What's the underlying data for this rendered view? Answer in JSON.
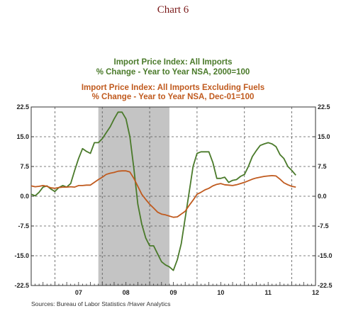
{
  "chart_data": {
    "type": "line",
    "title": "Chart 6",
    "ylim": [
      -22.5,
      22.5
    ],
    "yticks": [
      "22.5",
      "15.0",
      "7.5",
      "0.0",
      "-7.5",
      "-15.0",
      "-22.5"
    ],
    "ytick_values": [
      22.5,
      15,
      7.5,
      0,
      -7.5,
      -15,
      -22.5
    ],
    "xticks": [
      "07",
      "08",
      "09",
      "10",
      "11",
      "12"
    ],
    "x_start": "2006-07",
    "x_end": "2012-07",
    "grid": true,
    "shaded_region": {
      "start": "2007-12",
      "end": "2009-06"
    },
    "legend_placement": "top",
    "series": [
      {
        "name": "Import Price Index: All Imports",
        "subtitle": "% Change - Year to Year    NSA, 2000=100",
        "color": "#4a7a2a",
        "points": [
          [
            "2006-07",
            0.5
          ],
          [
            "2006-08",
            0.1
          ],
          [
            "2006-09",
            1.0
          ],
          [
            "2006-10",
            2.3
          ],
          [
            "2006-11",
            2.6
          ],
          [
            "2006-12",
            1.8
          ],
          [
            "2007-01",
            1.2
          ],
          [
            "2007-02",
            2.2
          ],
          [
            "2007-03",
            2.7
          ],
          [
            "2007-04",
            2.3
          ],
          [
            "2007-05",
            3.2
          ],
          [
            "2007-06",
            6.5
          ],
          [
            "2007-07",
            9.5
          ],
          [
            "2007-08",
            12.0
          ],
          [
            "2007-09",
            11.3
          ],
          [
            "2007-10",
            10.8
          ],
          [
            "2007-11",
            13.5
          ],
          [
            "2007-12",
            13.5
          ],
          [
            "2008-01",
            14.5
          ],
          [
            "2008-02",
            16.0
          ],
          [
            "2008-03",
            17.5
          ],
          [
            "2008-04",
            19.5
          ],
          [
            "2008-05",
            21.2
          ],
          [
            "2008-06",
            21.2
          ],
          [
            "2008-07",
            19.5
          ],
          [
            "2008-08",
            15.0
          ],
          [
            "2008-09",
            7.0
          ],
          [
            "2008-10",
            -2.0
          ],
          [
            "2008-11",
            -7.0
          ],
          [
            "2008-12",
            -10.5
          ],
          [
            "2009-01",
            -12.5
          ],
          [
            "2009-02",
            -12.5
          ],
          [
            "2009-03",
            -14.5
          ],
          [
            "2009-04",
            -16.5
          ],
          [
            "2009-05",
            -17.3
          ],
          [
            "2009-06",
            -17.8
          ],
          [
            "2009-07",
            -18.7
          ],
          [
            "2009-08",
            -16.0
          ],
          [
            "2009-09",
            -12.0
          ],
          [
            "2009-10",
            -5.5
          ],
          [
            "2009-11",
            1.0
          ],
          [
            "2009-12",
            7.5
          ],
          [
            "2010-01",
            10.8
          ],
          [
            "2010-02",
            11.2
          ],
          [
            "2010-03",
            11.2
          ],
          [
            "2010-04",
            11.2
          ],
          [
            "2010-05",
            8.5
          ],
          [
            "2010-06",
            4.5
          ],
          [
            "2010-07",
            4.5
          ],
          [
            "2010-08",
            4.8
          ],
          [
            "2010-09",
            3.5
          ],
          [
            "2010-10",
            4.0
          ],
          [
            "2010-11",
            4.2
          ],
          [
            "2010-12",
            5.0
          ],
          [
            "2011-01",
            5.5
          ],
          [
            "2011-02",
            7.5
          ],
          [
            "2011-03",
            10.0
          ],
          [
            "2011-04",
            11.5
          ],
          [
            "2011-05",
            12.8
          ],
          [
            "2011-06",
            13.2
          ],
          [
            "2011-07",
            13.5
          ],
          [
            "2011-08",
            13.2
          ],
          [
            "2011-09",
            12.5
          ],
          [
            "2011-10",
            10.5
          ],
          [
            "2011-11",
            9.5
          ],
          [
            "2011-12",
            7.5
          ],
          [
            "2012-01",
            6.5
          ],
          [
            "2012-02",
            5.3
          ]
        ]
      },
      {
        "name": "Import Price Index: All Imports Excluding Fuels",
        "subtitle": "% Change - Year to Year    NSA, Dec-01=100",
        "color": "#c05a1e",
        "points": [
          [
            "2006-07",
            2.6
          ],
          [
            "2006-08",
            2.4
          ],
          [
            "2006-09",
            2.5
          ],
          [
            "2006-10",
            2.7
          ],
          [
            "2006-11",
            2.5
          ],
          [
            "2006-12",
            2.1
          ],
          [
            "2007-01",
            2.0
          ],
          [
            "2007-02",
            2.2
          ],
          [
            "2007-03",
            2.3
          ],
          [
            "2007-04",
            2.3
          ],
          [
            "2007-05",
            2.4
          ],
          [
            "2007-06",
            2.3
          ],
          [
            "2007-07",
            2.7
          ],
          [
            "2007-08",
            2.7
          ],
          [
            "2007-09",
            2.8
          ],
          [
            "2007-10",
            2.8
          ],
          [
            "2007-11",
            3.5
          ],
          [
            "2007-12",
            4.2
          ],
          [
            "2008-01",
            4.8
          ],
          [
            "2008-02",
            5.5
          ],
          [
            "2008-03",
            5.8
          ],
          [
            "2008-04",
            6.0
          ],
          [
            "2008-05",
            6.3
          ],
          [
            "2008-06",
            6.4
          ],
          [
            "2008-07",
            6.4
          ],
          [
            "2008-08",
            6.1
          ],
          [
            "2008-09",
            4.5
          ],
          [
            "2008-10",
            2.5
          ],
          [
            "2008-11",
            0.5
          ],
          [
            "2008-12",
            -0.8
          ],
          [
            "2009-01",
            -2.0
          ],
          [
            "2009-02",
            -3.0
          ],
          [
            "2009-03",
            -4.0
          ],
          [
            "2009-04",
            -4.5
          ],
          [
            "2009-05",
            -4.7
          ],
          [
            "2009-06",
            -5.0
          ],
          [
            "2009-07",
            -5.3
          ],
          [
            "2009-08",
            -5.2
          ],
          [
            "2009-09",
            -4.5
          ],
          [
            "2009-10",
            -3.8
          ],
          [
            "2009-11",
            -2.3
          ],
          [
            "2009-12",
            -1.0
          ],
          [
            "2010-01",
            0.5
          ],
          [
            "2010-02",
            1.0
          ],
          [
            "2010-03",
            1.6
          ],
          [
            "2010-04",
            2.0
          ],
          [
            "2010-05",
            2.6
          ],
          [
            "2010-06",
            3.0
          ],
          [
            "2010-07",
            3.2
          ],
          [
            "2010-08",
            2.9
          ],
          [
            "2010-09",
            2.8
          ],
          [
            "2010-10",
            2.7
          ],
          [
            "2010-11",
            2.9
          ],
          [
            "2010-12",
            3.2
          ],
          [
            "2011-01",
            3.5
          ],
          [
            "2011-02",
            3.9
          ],
          [
            "2011-03",
            4.3
          ],
          [
            "2011-04",
            4.6
          ],
          [
            "2011-05",
            4.8
          ],
          [
            "2011-06",
            5.0
          ],
          [
            "2011-07",
            5.1
          ],
          [
            "2011-08",
            5.2
          ],
          [
            "2011-09",
            5.1
          ],
          [
            "2011-10",
            4.3
          ],
          [
            "2011-11",
            3.4
          ],
          [
            "2011-12",
            2.9
          ],
          [
            "2012-01",
            2.5
          ],
          [
            "2012-02",
            2.3
          ]
        ]
      }
    ]
  },
  "source": "Sources:  Bureau of Labor Statistics /Haver Analytics"
}
